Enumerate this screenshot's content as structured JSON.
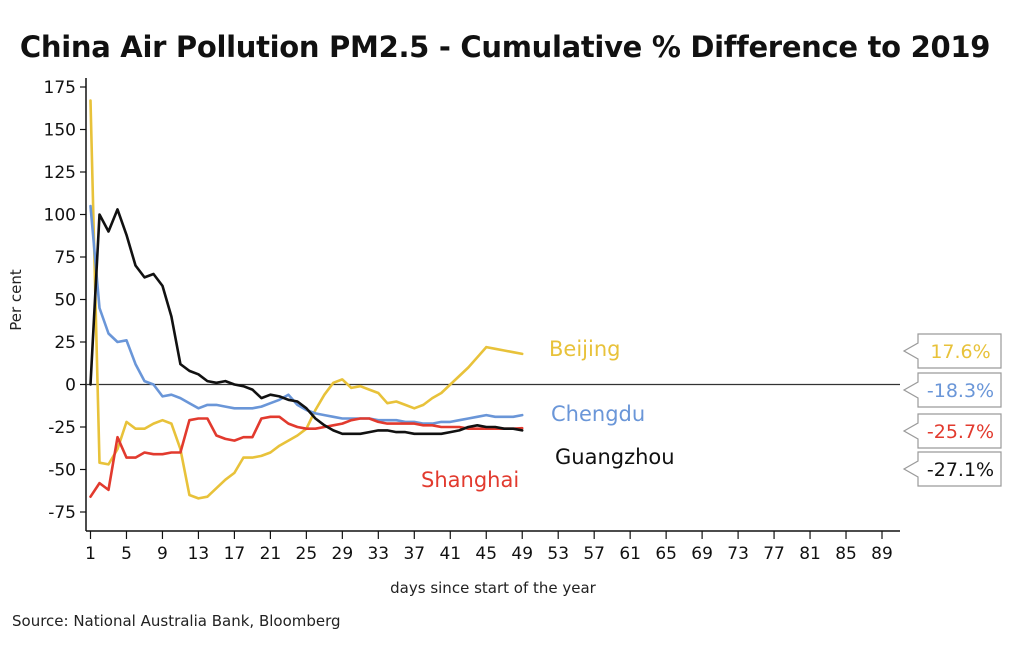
{
  "title": "China Air Pollution PM2.5 - Cumulative % Difference to 2019",
  "source": "Source: National Australia Bank, Bloomberg",
  "chart_data": {
    "type": "line",
    "xlabel": "days since start of the year",
    "ylabel": "Per cent",
    "xlim": [
      1,
      91
    ],
    "ylim": [
      -85,
      180
    ],
    "x_ticks": [
      1,
      5,
      9,
      13,
      17,
      21,
      25,
      29,
      33,
      37,
      41,
      45,
      49,
      53,
      57,
      61,
      65,
      69,
      73,
      77,
      81,
      85,
      89
    ],
    "y_ticks": [
      175,
      150,
      125,
      100,
      75,
      50,
      25,
      0,
      -25,
      -50,
      -75
    ],
    "zero_line": true,
    "series": [
      {
        "name": "Beijing",
        "color": "#e8c23a",
        "end_value": "17.6%",
        "x": [
          1,
          2,
          3,
          4,
          5,
          6,
          7,
          8,
          9,
          10,
          11,
          12,
          13,
          14,
          15,
          16,
          17,
          18,
          19,
          20,
          21,
          22,
          23,
          24,
          25,
          26,
          27,
          28,
          29,
          30,
          31,
          32,
          33,
          34,
          35,
          36,
          37,
          38,
          39,
          40,
          41,
          42,
          43,
          44,
          45,
          46,
          47,
          48,
          49
        ],
        "values": [
          167,
          -46,
          -47,
          -38,
          -22,
          -26,
          -26,
          -23,
          -21,
          -23,
          -38,
          -65,
          -67,
          -66,
          -61,
          -56,
          -52,
          -43,
          -43,
          -42,
          -40,
          -36,
          -33,
          -30,
          -26,
          -15,
          -6,
          1,
          3,
          -2,
          -1,
          -3,
          -5,
          -11,
          -10,
          -12,
          -14,
          -12,
          -8,
          -5,
          0,
          5,
          10,
          16,
          22,
          21,
          20,
          19,
          18
        ]
      },
      {
        "name": "Chengdu",
        "color": "#6a96d8",
        "end_value": "-18.3%",
        "x": [
          1,
          2,
          3,
          4,
          5,
          6,
          7,
          8,
          9,
          10,
          11,
          12,
          13,
          14,
          15,
          16,
          17,
          18,
          19,
          20,
          21,
          22,
          23,
          24,
          25,
          26,
          27,
          28,
          29,
          30,
          31,
          32,
          33,
          34,
          35,
          36,
          37,
          38,
          39,
          40,
          41,
          42,
          43,
          44,
          45,
          46,
          47,
          48,
          49
        ],
        "values": [
          105,
          45,
          30,
          25,
          26,
          12,
          2,
          0,
          -7,
          -6,
          -8,
          -11,
          -14,
          -12,
          -12,
          -13,
          -14,
          -14,
          -14,
          -13,
          -11,
          -9,
          -6,
          -12,
          -15,
          -17,
          -18,
          -19,
          -20,
          -20,
          -20,
          -20,
          -21,
          -21,
          -21,
          -22,
          -22,
          -23,
          -23,
          -22,
          -22,
          -21,
          -20,
          -19,
          -18,
          -19,
          -19,
          -19,
          -18
        ]
      },
      {
        "name": "Guangzhou",
        "color": "#111111",
        "end_value": "-27.1%",
        "x": [
          1,
          2,
          3,
          4,
          5,
          6,
          7,
          8,
          9,
          10,
          11,
          12,
          13,
          14,
          15,
          16,
          17,
          18,
          19,
          20,
          21,
          22,
          23,
          24,
          25,
          26,
          27,
          28,
          29,
          30,
          31,
          32,
          33,
          34,
          35,
          36,
          37,
          38,
          39,
          40,
          41,
          42,
          43,
          44,
          45,
          46,
          47,
          48,
          49
        ],
        "values": [
          0,
          100,
          90,
          103,
          88,
          70,
          63,
          65,
          58,
          40,
          12,
          8,
          6,
          2,
          1,
          2,
          0,
          -1,
          -3,
          -8,
          -6,
          -7,
          -9,
          -10,
          -14,
          -20,
          -24,
          -27,
          -29,
          -29,
          -29,
          -28,
          -27,
          -27,
          -28,
          -28,
          -29,
          -29,
          -29,
          -29,
          -28,
          -27,
          -25,
          -24,
          -25,
          -25,
          -26,
          -26,
          -27
        ]
      },
      {
        "name": "Shanghai",
        "color": "#e23a2e",
        "end_value": "-25.7%",
        "x": [
          1,
          2,
          3,
          4,
          5,
          6,
          7,
          8,
          9,
          10,
          11,
          12,
          13,
          14,
          15,
          16,
          17,
          18,
          19,
          20,
          21,
          22,
          23,
          24,
          25,
          26,
          27,
          28,
          29,
          30,
          31,
          32,
          33,
          34,
          35,
          36,
          37,
          38,
          39,
          40,
          41,
          42,
          43,
          44,
          45,
          46,
          47,
          48,
          49
        ],
        "values": [
          -66,
          -58,
          -62,
          -31,
          -43,
          -43,
          -40,
          -41,
          -41,
          -40,
          -40,
          -21,
          -20,
          -20,
          -30,
          -32,
          -33,
          -31,
          -31,
          -20,
          -19,
          -19,
          -23,
          -25,
          -26,
          -26,
          -25,
          -24,
          -23,
          -21,
          -20,
          -20,
          -22,
          -23,
          -23,
          -23,
          -23,
          -24,
          -24,
          -25,
          -25,
          -25,
          -26,
          -26,
          -26,
          -26,
          -26,
          -26,
          -25.7
        ]
      }
    ]
  }
}
